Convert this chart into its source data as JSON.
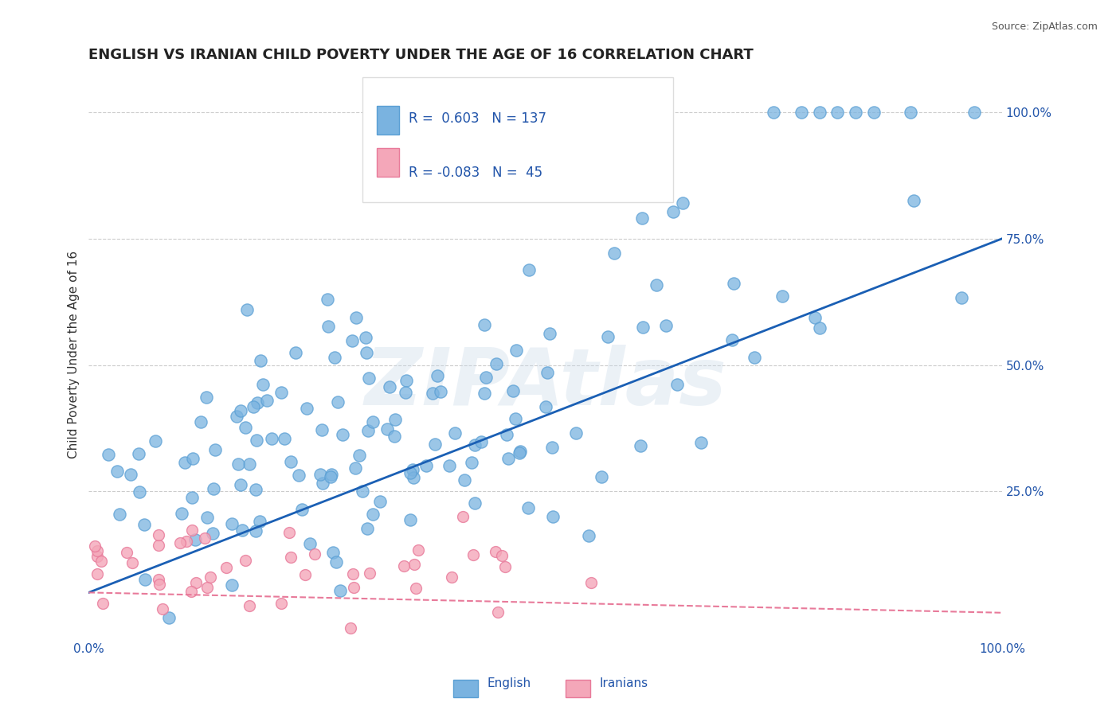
{
  "title": "ENGLISH VS IRANIAN CHILD POVERTY UNDER THE AGE OF 16 CORRELATION CHART",
  "source": "Source: ZipAtlas.com",
  "xlabel": "",
  "ylabel": "Child Poverty Under the Age of 16",
  "xlim": [
    0,
    1
  ],
  "ylim": [
    -0.04,
    1.08
  ],
  "english_color": "#7ab3e0",
  "english_edge": "#5a9fd4",
  "iranian_color": "#f4a7b9",
  "iranian_edge": "#e87a9a",
  "blue_line_color": "#1a5fb4",
  "pink_line_color": "#e87a9a",
  "legend_R_english": "0.603",
  "legend_N_english": "137",
  "legend_R_iranian": "-0.083",
  "legend_N_iranian": "45",
  "watermark": "ZIPAtlas",
  "watermark_color": "#c8d8e8",
  "english_seed": 42,
  "iranian_seed": 7,
  "grid_color": "#cccccc",
  "background_color": "#ffffff",
  "title_color": "#222222",
  "axis_label_color": "#333333",
  "tick_label_color": "#2255aa",
  "source_color": "#555555"
}
